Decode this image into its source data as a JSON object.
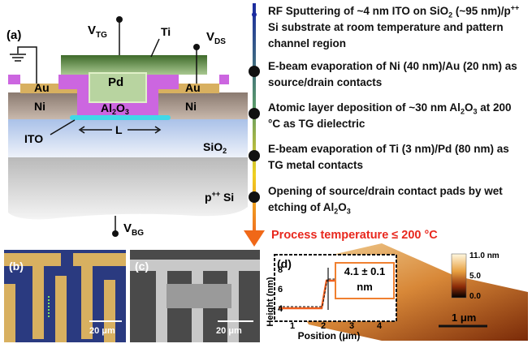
{
  "panel_a": {
    "label": "(a)",
    "v_tg": [
      "V",
      "TG"
    ],
    "v_ds": [
      "V",
      "DS"
    ],
    "v_bg": [
      "V",
      "BG"
    ],
    "ti": "Ti",
    "pd": "Pd",
    "au_left": "Au",
    "au_right": "Au",
    "ni_left": "Ni",
    "ni_right": "Ni",
    "al2o3": [
      "Al",
      "2",
      "O",
      "3"
    ],
    "ito": "ITO",
    "channel": "L",
    "sio2": [
      "SiO",
      "2"
    ],
    "substrate": [
      "p",
      "++",
      " Si"
    ]
  },
  "process": {
    "steps": [
      [
        "RF Sputtering of ~4 nm ITO on SiO",
        "2",
        " (~95 nm)/p",
        "++",
        " Si substrate at room temperature and pattern channel region"
      ],
      [
        "E-beam evaporation of Ni (40 nm)/Au (20 nm) as source/drain contacts"
      ],
      [
        "Atomic layer deposition of ~30 nm Al",
        "2",
        "O",
        "3",
        " at 200 °C as TG dielectric"
      ],
      [
        "E-beam evaporation of Ti (3 nm)/Pd (80 nm) as TG metal contacts"
      ],
      [
        "Opening of source/drain contact pads by wet etching of Al",
        "2",
        "O",
        "3"
      ]
    ],
    "result": "Process temperature ≤ 200 °C"
  },
  "panel_b": {
    "label": "(b)",
    "scale_bar": "20 μm"
  },
  "panel_c": {
    "label": "(c)",
    "scale_bar": "20 μm"
  },
  "panel_d": {
    "label": "(d)",
    "y_label": "Height (nm)",
    "x_label": "Position (μm)",
    "yticks": [
      8,
      6,
      4
    ],
    "xticks": [
      1,
      2,
      3,
      4
    ],
    "step_height": "4.1 ± 0.1 nm",
    "colorbar": [
      "11.0 nm",
      "5.0",
      "0.0"
    ],
    "scale_bar": "1 μm"
  }
}
